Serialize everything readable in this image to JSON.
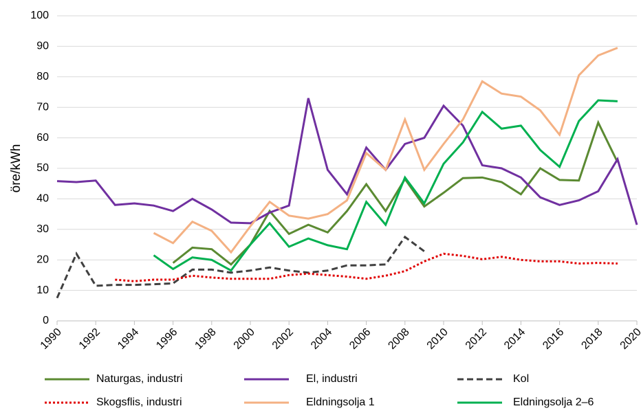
{
  "chart_data": {
    "type": "line",
    "y_label": "öre/kWh",
    "x": [
      1990,
      1991,
      1992,
      1993,
      1994,
      1995,
      1996,
      1997,
      1998,
      1999,
      2000,
      2001,
      2002,
      2003,
      2004,
      2005,
      2006,
      2007,
      2008,
      2009,
      2010,
      2011,
      2012,
      2013,
      2014,
      2015,
      2016,
      2017,
      2018,
      2019,
      2020
    ],
    "xlim": [
      1990,
      2020
    ],
    "xticks": [
      1990,
      1992,
      1994,
      1996,
      1998,
      2000,
      2002,
      2004,
      2006,
      2008,
      2010,
      2012,
      2014,
      2016,
      2018,
      2020
    ],
    "ylim": [
      0,
      100
    ],
    "yticks": [
      0,
      10,
      20,
      30,
      40,
      50,
      60,
      70,
      80,
      90,
      100
    ],
    "grid": true,
    "series": [
      {
        "name": "Naturgas, industri",
        "color": "#5b8a32",
        "dash": "solid",
        "values": [
          null,
          null,
          null,
          null,
          null,
          null,
          19,
          24,
          23.5,
          18.5,
          25,
          36,
          28.5,
          31.5,
          29,
          36,
          44.8,
          36,
          46.5,
          37.5,
          42,
          46.8,
          47,
          45.5,
          41.5,
          50,
          46.2,
          46,
          65,
          52,
          null
        ]
      },
      {
        "name": "El, industri",
        "color": "#7030a0",
        "dash": "solid",
        "values": [
          45.8,
          45.5,
          46,
          38,
          38.5,
          37.8,
          36,
          40,
          36.5,
          32.2,
          32,
          35.5,
          37.8,
          73,
          49.5,
          41.5,
          56.8,
          49.5,
          58,
          60,
          70.5,
          64,
          51,
          50,
          47,
          40.5,
          38,
          39.5,
          42.5,
          53,
          31.5
        ]
      },
      {
        "name": "Kol",
        "color": "#404040",
        "dash": "dashed",
        "values": [
          7.5,
          22,
          11.5,
          11.8,
          11.8,
          12,
          12.3,
          16.8,
          16.8,
          15.8,
          16.5,
          17.5,
          16.5,
          15.8,
          16.5,
          18.2,
          18.2,
          18.5,
          27.5,
          22.8,
          null,
          null,
          null,
          null,
          null,
          null,
          null,
          null,
          null,
          null,
          null
        ]
      },
      {
        "name": "Skogsflis, industri",
        "color": "#e00000",
        "dash": "dotted",
        "values": [
          null,
          null,
          null,
          13.5,
          13,
          13.5,
          13.5,
          14.8,
          14.2,
          13.8,
          13.8,
          13.8,
          15,
          15.5,
          15,
          14.5,
          13.8,
          14.8,
          16.3,
          19.5,
          22,
          21.3,
          20.2,
          21,
          20,
          19.5,
          19.5,
          18.8,
          19,
          18.8,
          null
        ]
      },
      {
        "name": "Eldningsolja 1",
        "color": "#f4b183",
        "dash": "solid",
        "values": [
          null,
          null,
          null,
          null,
          null,
          28.8,
          25.5,
          32.5,
          29.5,
          22.5,
          31,
          39,
          34.5,
          33.5,
          35,
          39.5,
          55,
          49.5,
          66,
          49.5,
          58,
          66,
          78.5,
          74.5,
          73.5,
          69,
          61,
          80.5,
          87,
          89.5,
          null
        ]
      },
      {
        "name": "Eldningsolja 2–6",
        "color": "#00b050",
        "dash": "solid",
        "values": [
          null,
          null,
          null,
          null,
          null,
          21.5,
          17,
          20.8,
          20,
          16.5,
          25,
          32,
          24.3,
          27,
          24.8,
          23.5,
          39,
          31.5,
          47,
          38.5,
          51.5,
          58.5,
          68.5,
          63,
          64,
          56,
          50.5,
          65.5,
          72.3,
          72,
          null
        ]
      }
    ]
  }
}
